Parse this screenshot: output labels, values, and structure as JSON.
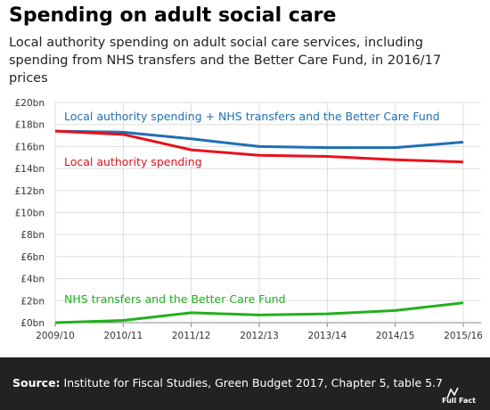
{
  "header": {
    "title": "Spending on adult social care",
    "subtitle": "Local authority spending on adult social care services, including spending from NHS transfers and the Better Care Fund, in 2016/17 prices"
  },
  "chart_data": {
    "type": "line",
    "categories": [
      "2009/10",
      "2010/11",
      "2011/12",
      "2012/13",
      "2013/14",
      "2014/15",
      "2015/16"
    ],
    "y_ticks": [
      "£0bn",
      "£2bn",
      "£4bn",
      "£6bn",
      "£8bn",
      "£10bn",
      "£12bn",
      "£14bn",
      "£16bn",
      "£18bn",
      "£20bn"
    ],
    "ylim": [
      0,
      20
    ],
    "grid": true,
    "series": [
      {
        "name": "Local authority spending + NHS transfers and the Better Care Fund",
        "color": "#1f6fb5",
        "values": [
          17.4,
          17.3,
          16.7,
          16.0,
          15.9,
          15.9,
          16.4
        ]
      },
      {
        "name": "Local authority spending",
        "color": "#e8111c",
        "values": [
          17.4,
          17.1,
          15.7,
          15.2,
          15.1,
          14.8,
          14.6
        ]
      },
      {
        "name": "NHS transfers and the Better Care Fund",
        "color": "#22b01e",
        "values": [
          0.0,
          0.2,
          0.9,
          0.7,
          0.8,
          1.1,
          1.8
        ]
      }
    ]
  },
  "footer": {
    "source_label": "Source:",
    "source_text": " Institute for Fiscal Studies, Green Budget 2017, Chapter 5, table 5.7",
    "logo_text": "Full Fact"
  }
}
